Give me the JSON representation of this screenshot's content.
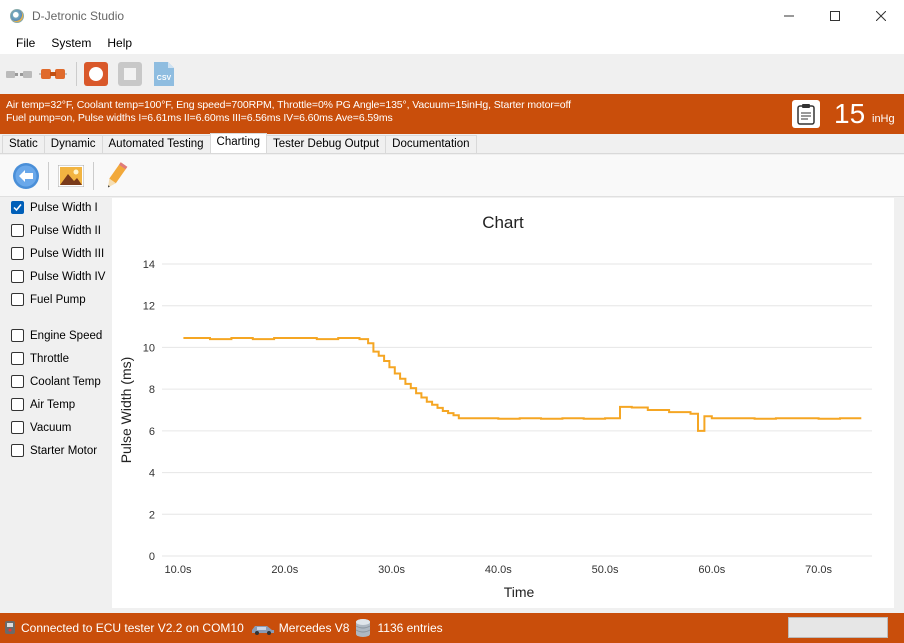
{
  "window": {
    "title": "D-Jetronic Studio"
  },
  "menu": [
    "File",
    "System",
    "Help"
  ],
  "status": {
    "line1": "Air temp=32°F, Coolant temp=100°F, Eng speed=700RPM, Throttle=0% PG Angle=135°, Vacuum=15inHg, Starter motor=off",
    "line2": "Fuel pump=on, Pulse widths I=6.61ms II=6.60ms III=6.56ms IV=6.60ms Ave=6.59ms",
    "vacuum_value": "15",
    "vacuum_unit": "inHg"
  },
  "tabs": [
    {
      "label": "Static",
      "active": false
    },
    {
      "label": "Dynamic",
      "active": false
    },
    {
      "label": "Automated Testing",
      "active": false
    },
    {
      "label": "Charting",
      "active": true
    },
    {
      "label": "Tester Debug Output",
      "active": false
    },
    {
      "label": "Documentation",
      "active": false
    }
  ],
  "series_options": [
    {
      "label": "Pulse Width I",
      "checked": true
    },
    {
      "label": "Pulse Width II",
      "checked": false
    },
    {
      "label": "Pulse Width III",
      "checked": false
    },
    {
      "label": "Pulse Width IV",
      "checked": false
    },
    {
      "label": "Fuel Pump",
      "checked": false
    },
    {
      "label": "Engine Speed",
      "checked": false
    },
    {
      "label": "Throttle",
      "checked": false
    },
    {
      "label": "Coolant Temp",
      "checked": false
    },
    {
      "label": "Air Temp",
      "checked": false
    },
    {
      "label": "Vacuum",
      "checked": false
    },
    {
      "label": "Starter Motor",
      "checked": false
    }
  ],
  "bottom": {
    "connection": "Connected to ECU tester V2.2 on COM10",
    "vehicle": "Mercedes V8",
    "entries": "1136 entries"
  },
  "colors": {
    "accent": "#c94e0b",
    "series": "#f5a623",
    "check": "#005fb8"
  },
  "chart_data": {
    "type": "line",
    "title": "Chart",
    "xlabel": "Time",
    "ylabel": "Pulse Width (ms)",
    "xlim": [
      8.5,
      75
    ],
    "ylim": [
      0,
      14
    ],
    "yticks": [
      0,
      2,
      4,
      6,
      8,
      10,
      12,
      14
    ],
    "xticks": [
      "10.0s",
      "20.0s",
      "30.0s",
      "40.0s",
      "50.0s",
      "60.0s",
      "70.0s"
    ],
    "xtick_values": [
      10,
      20,
      30,
      40,
      50,
      60,
      70
    ],
    "grid": "horizontal",
    "series": [
      {
        "name": "Pulse Width I",
        "x": [
          10.5,
          12,
          13,
          15,
          17,
          19,
          20,
          21,
          23,
          25,
          26,
          27,
          27.8,
          28.3,
          28.8,
          29.3,
          29.8,
          30.3,
          30.8,
          31.3,
          31.8,
          32.3,
          32.8,
          33.3,
          33.8,
          34.3,
          34.8,
          35.3,
          35.8,
          36.3,
          36.8,
          37.3,
          38,
          40,
          42,
          44,
          46,
          48,
          50,
          51.3,
          51.4,
          52.5,
          54,
          56,
          58,
          58.6,
          58.7,
          59.2,
          59.3,
          60,
          62,
          64,
          66,
          68,
          70,
          72,
          74
        ],
        "y": [
          10.45,
          10.45,
          10.4,
          10.45,
          10.4,
          10.45,
          10.45,
          10.45,
          10.4,
          10.45,
          10.45,
          10.4,
          10.2,
          9.8,
          9.6,
          9.35,
          9.05,
          8.75,
          8.5,
          8.25,
          8.05,
          7.8,
          7.6,
          7.4,
          7.25,
          7.1,
          6.95,
          6.85,
          6.75,
          6.6,
          6.6,
          6.6,
          6.6,
          6.58,
          6.6,
          6.58,
          6.6,
          6.58,
          6.6,
          6.6,
          7.15,
          7.12,
          7.0,
          6.9,
          6.82,
          6.82,
          6.0,
          6.0,
          6.7,
          6.6,
          6.6,
          6.58,
          6.6,
          6.6,
          6.58,
          6.6,
          6.6
        ]
      }
    ]
  }
}
